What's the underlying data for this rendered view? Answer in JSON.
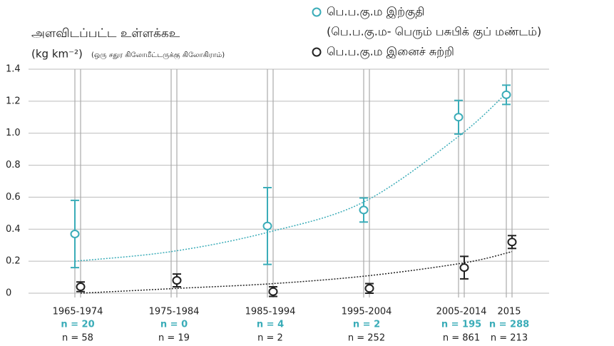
{
  "chart_data": {
    "type": "errorbar",
    "ylabel": "அளவிடப்பட்ட உள்ளக்கஉ",
    "yunit": "(kg km⁻²)",
    "yunit_note": "(ஒரு சதுர கிலோமீட்டருக்கு கிலோகிராம்)",
    "categories": [
      "1965-1974",
      "1975-1984",
      "1985-1994",
      "1995-2004",
      "2005-2014",
      "2015"
    ],
    "ylim": [
      0,
      1.4
    ],
    "yticks": [
      0,
      0.2,
      0.4,
      0.6,
      0.8,
      {
        "value": 1,
        "label": "1.0"
      },
      1.2,
      1.4
    ],
    "grid": true,
    "series": [
      {
        "name": "பெ.ப.கு.ம இற்குதி",
        "legend_note": "(பெ.ப.கு.ம- பெரும் பசுபிக் குப் மண்டம்)",
        "color": "#3aacb8",
        "values": [
          0.37,
          null,
          0.42,
          0.52,
          1.1,
          1.24
        ],
        "errors": [
          0.21,
          null,
          0.24,
          0.075,
          0.105,
          0.06
        ],
        "trend": [
          0.2,
          0.26,
          0.38,
          0.57,
          0.98,
          1.25
        ],
        "counts": [
          "n = 20",
          "n = 0",
          "n = 4",
          "n = 2",
          "n = 195",
          "n = 288"
        ]
      },
      {
        "name": "பெ.ப.கு.ம இனைச் சுற்றி",
        "color": "#222222",
        "values": [
          0.04,
          0.08,
          0.01,
          0.03,
          0.16,
          0.32
        ],
        "errors": [
          0.03,
          0.04,
          0.03,
          0.03,
          0.07,
          0.04
        ],
        "trend": [
          0,
          0.03,
          0.06,
          0.11,
          0.19,
          0.26
        ],
        "counts": [
          "n = 58",
          "n = 19",
          "n = 2",
          "n = 252",
          "n = 861",
          "n = 213"
        ]
      }
    ]
  }
}
